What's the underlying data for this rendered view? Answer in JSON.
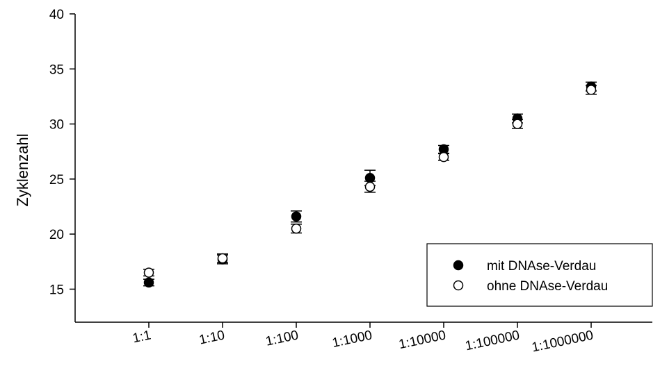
{
  "chart_data": {
    "type": "scatter",
    "title": "",
    "xlabel": "",
    "ylabel": "Zyklenzahl",
    "ylim": [
      12,
      40
    ],
    "yticks": [
      15,
      20,
      25,
      30,
      35,
      40
    ],
    "categories": [
      "1:1",
      "1:10",
      "1:100",
      "1:1000",
      "1:10000",
      "1:100000",
      "1:1000000"
    ],
    "grid": false,
    "legend_position": "bottom-right",
    "series": [
      {
        "name": "mit DNAse-Verdau",
        "marker": "filled-circle",
        "color": "#000000",
        "values": [
          15.6,
          17.7,
          21.6,
          25.1,
          27.7,
          30.5,
          33.4
        ],
        "errors": [
          0.3,
          0.4,
          0.5,
          0.7,
          0.35,
          0.4,
          0.4
        ]
      },
      {
        "name": "ohne DNAse-Verdau",
        "marker": "open-circle",
        "color": "#000000",
        "values": [
          16.5,
          17.8,
          20.5,
          24.3,
          27.0,
          30.0,
          33.1
        ],
        "errors": [
          0.3,
          0.4,
          0.4,
          0.5,
          0.3,
          0.4,
          0.4
        ]
      }
    ]
  }
}
